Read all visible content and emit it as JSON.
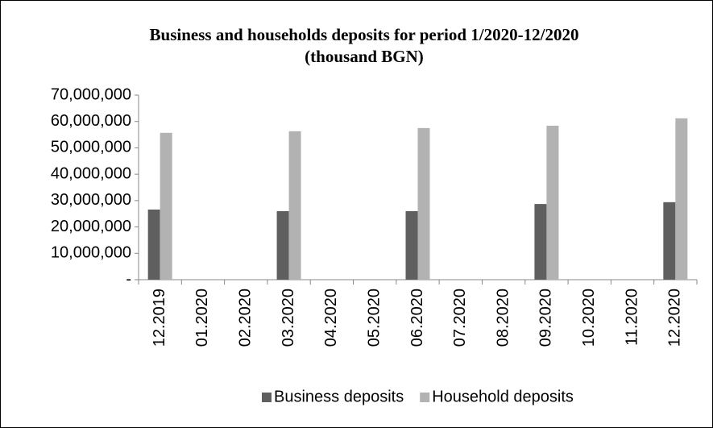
{
  "chart_data": {
    "type": "bar",
    "title": "Business and households deposits for period 1/2020-12/2020",
    "subtitle": "(thousand BGN)",
    "categories": [
      "12.2019",
      "01.2020",
      "02.2020",
      "03.2020",
      "04.2020",
      "05.2020",
      "06.2020",
      "07.2020",
      "08.2020",
      "09.2020",
      "10.2020",
      "11.2020",
      "12.2020"
    ],
    "series": [
      {
        "name": "Business deposits",
        "color": "#5f5f5f",
        "values": [
          26600000,
          null,
          null,
          26000000,
          null,
          null,
          26000000,
          null,
          null,
          28700000,
          null,
          null,
          29400000
        ]
      },
      {
        "name": "Household deposits",
        "color": "#b2b2b2",
        "values": [
          55700000,
          null,
          null,
          56300000,
          null,
          null,
          57500000,
          null,
          null,
          58400000,
          null,
          null,
          61200000
        ]
      }
    ],
    "ylim": [
      0,
      70000000
    ],
    "yticks": [
      {
        "value": 0,
        "label": "-"
      },
      {
        "value": 10000000,
        "label": "10,000,000"
      },
      {
        "value": 20000000,
        "label": "20,000,000"
      },
      {
        "value": 30000000,
        "label": "30,000,000"
      },
      {
        "value": 40000000,
        "label": "40,000,000"
      },
      {
        "value": 50000000,
        "label": "50,000,000"
      },
      {
        "value": 60000000,
        "label": "60,000,000"
      },
      {
        "value": 70000000,
        "label": "70,000,000"
      }
    ],
    "grid": false,
    "legend": "bottom"
  }
}
